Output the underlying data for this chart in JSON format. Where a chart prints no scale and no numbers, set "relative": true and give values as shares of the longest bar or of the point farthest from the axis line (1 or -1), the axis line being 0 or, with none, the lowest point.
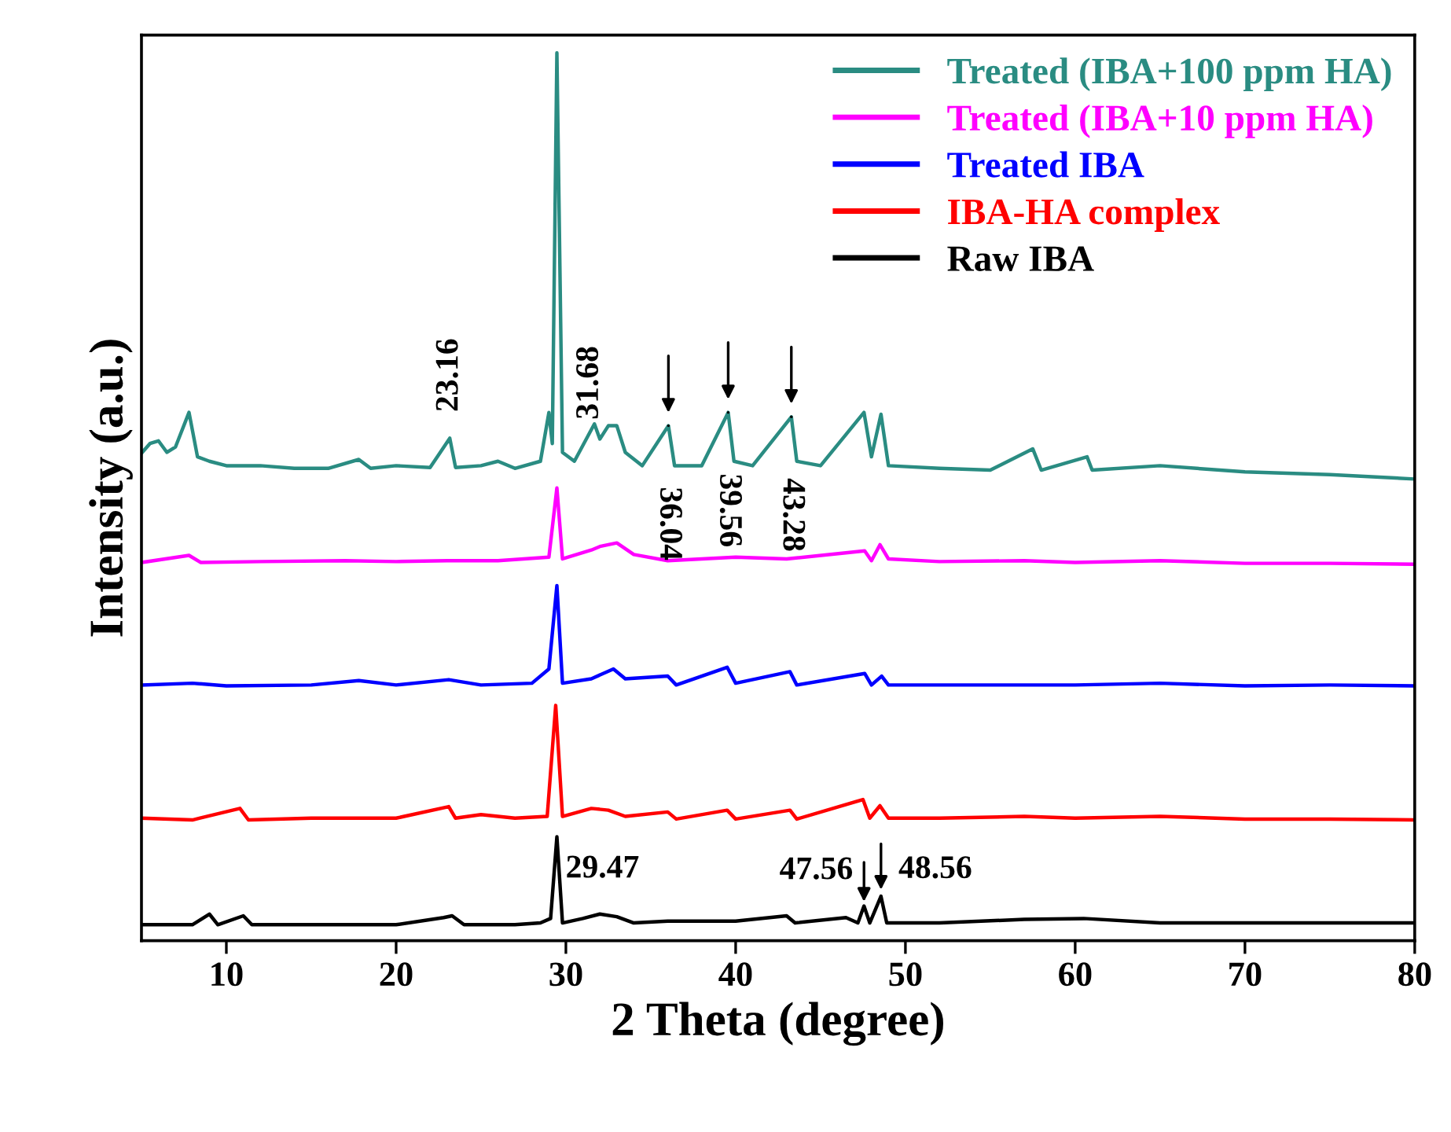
{
  "chart_data": {
    "type": "line",
    "relative": true,
    "xlabel": "2 Theta (degree)",
    "ylabel": "Intensity (a.u.)",
    "xlim": [
      5,
      80
    ],
    "xticks": [
      10,
      20,
      30,
      40,
      50,
      60,
      70,
      80
    ],
    "tick_labels": "x",
    "grid": false,
    "legend": "top right",
    "marker": "none",
    "line_style": "solid",
    "series": [
      {
        "name": "Treated (IBA+100 ppm HA)",
        "color": "#2a8c82",
        "x": [
          5,
          5.5,
          6,
          6.5,
          7,
          7.8,
          8.3,
          9,
          10,
          12,
          14,
          16,
          17.8,
          18.5,
          20,
          22,
          23.16,
          23.5,
          25,
          26,
          27,
          28.5,
          29,
          29.2,
          29.47,
          29.8,
          30.5,
          31.68,
          32,
          32.5,
          33,
          33.5,
          34.5,
          36.04,
          36.4,
          38,
          39.56,
          39.9,
          41,
          43.28,
          43.6,
          45,
          47.56,
          48,
          48.56,
          49,
          52,
          55,
          57.5,
          58,
          60.7,
          61,
          65,
          70,
          75,
          80
        ],
        "values": [
          0.549,
          0.56,
          0.563,
          0.55,
          0.556,
          0.595,
          0.545,
          0.54,
          0.535,
          0.535,
          0.532,
          0.532,
          0.542,
          0.532,
          0.535,
          0.533,
          0.566,
          0.533,
          0.535,
          0.54,
          0.532,
          0.54,
          0.595,
          0.56,
          1.0,
          0.55,
          0.54,
          0.582,
          0.565,
          0.58,
          0.58,
          0.55,
          0.535,
          0.58,
          0.535,
          0.535,
          0.595,
          0.54,
          0.535,
          0.59,
          0.54,
          0.535,
          0.595,
          0.545,
          0.593,
          0.535,
          0.532,
          0.53,
          0.554,
          0.53,
          0.545,
          0.53,
          0.535,
          0.528,
          0.525,
          0.52
        ]
      },
      {
        "name": "Treated (IBA+10 ppm HA)",
        "color": "#ff00ff",
        "x": [
          5,
          7.8,
          8.5,
          12,
          17,
          20,
          23,
          26,
          29,
          29.47,
          29.8,
          31.5,
          32,
          33,
          34,
          36,
          40,
          43,
          47.6,
          48,
          48.5,
          49,
          52,
          57,
          60,
          65,
          70,
          75,
          80
        ],
        "values": [
          0.426,
          0.434,
          0.426,
          0.427,
          0.428,
          0.427,
          0.428,
          0.428,
          0.432,
          0.51,
          0.43,
          0.44,
          0.444,
          0.448,
          0.435,
          0.428,
          0.432,
          0.43,
          0.439,
          0.428,
          0.446,
          0.43,
          0.427,
          0.428,
          0.426,
          0.428,
          0.425,
          0.425,
          0.424
        ]
      },
      {
        "name": "Treated IBA",
        "color": "#0000ff",
        "x": [
          5,
          8,
          10,
          15,
          17.8,
          20,
          23.1,
          25,
          28,
          29,
          29.47,
          29.8,
          31.5,
          32.8,
          33.5,
          36,
          36.5,
          39.5,
          40,
          43.2,
          43.6,
          47.6,
          48,
          48.6,
          49,
          55,
          60,
          65,
          70,
          75,
          80
        ],
        "values": [
          0.288,
          0.29,
          0.287,
          0.288,
          0.293,
          0.288,
          0.294,
          0.288,
          0.29,
          0.306,
          0.4,
          0.29,
          0.295,
          0.306,
          0.295,
          0.298,
          0.288,
          0.308,
          0.29,
          0.303,
          0.288,
          0.301,
          0.288,
          0.298,
          0.288,
          0.288,
          0.288,
          0.29,
          0.287,
          0.288,
          0.287
        ]
      },
      {
        "name": "IBA-HA complex",
        "color": "#ff0000",
        "x": [
          5,
          8,
          10.8,
          11.3,
          15,
          20,
          23.1,
          23.5,
          25,
          27,
          28.9,
          29.4,
          29.8,
          31.5,
          32.5,
          33.5,
          36,
          36.5,
          39.5,
          40,
          43.2,
          43.6,
          47.5,
          47.9,
          48.5,
          49,
          52,
          57,
          60,
          65,
          70,
          75,
          80
        ],
        "values": [
          0.138,
          0.136,
          0.149,
          0.136,
          0.138,
          0.138,
          0.151,
          0.138,
          0.142,
          0.138,
          0.14,
          0.265,
          0.14,
          0.149,
          0.147,
          0.14,
          0.145,
          0.137,
          0.147,
          0.137,
          0.147,
          0.137,
          0.159,
          0.138,
          0.152,
          0.138,
          0.138,
          0.14,
          0.138,
          0.14,
          0.137,
          0.137,
          0.136
        ]
      },
      {
        "name": "Raw IBA",
        "color": "#000000",
        "x": [
          5,
          8,
          9,
          9.5,
          11,
          11.5,
          15,
          20,
          22.8,
          23.3,
          24,
          27,
          28.5,
          29.1,
          29.47,
          29.8,
          31,
          32,
          33,
          34,
          36,
          40,
          43,
          43.5,
          46.5,
          47.2,
          47.56,
          47.9,
          48.56,
          48.9,
          52,
          57,
          60.5,
          65,
          70,
          75,
          80
        ],
        "values": [
          0.018,
          0.018,
          0.03,
          0.018,
          0.028,
          0.018,
          0.018,
          0.018,
          0.026,
          0.028,
          0.018,
          0.018,
          0.02,
          0.025,
          0.117,
          0.02,
          0.025,
          0.03,
          0.027,
          0.02,
          0.022,
          0.022,
          0.028,
          0.02,
          0.026,
          0.02,
          0.039,
          0.02,
          0.05,
          0.02,
          0.02,
          0.024,
          0.025,
          0.02,
          0.02,
          0.02,
          0.02
        ]
      }
    ],
    "annotations": [
      {
        "text": "23.16",
        "x": 23.16,
        "y": 0.566
      },
      {
        "text": "31.68",
        "x": 31.68,
        "y": 0.582
      },
      {
        "text": "36.04",
        "x": 36.04,
        "y": 0.58
      },
      {
        "text": "39.56",
        "x": 39.56,
        "y": 0.595
      },
      {
        "text": "43.28",
        "x": 43.28,
        "y": 0.59
      },
      {
        "text": "29.47",
        "x": 29.47,
        "y": 0.117
      },
      {
        "text": "47.56",
        "x": 47.56,
        "y": 0.039
      },
      {
        "text": "48.56",
        "x": 48.56,
        "y": 0.05
      }
    ]
  }
}
